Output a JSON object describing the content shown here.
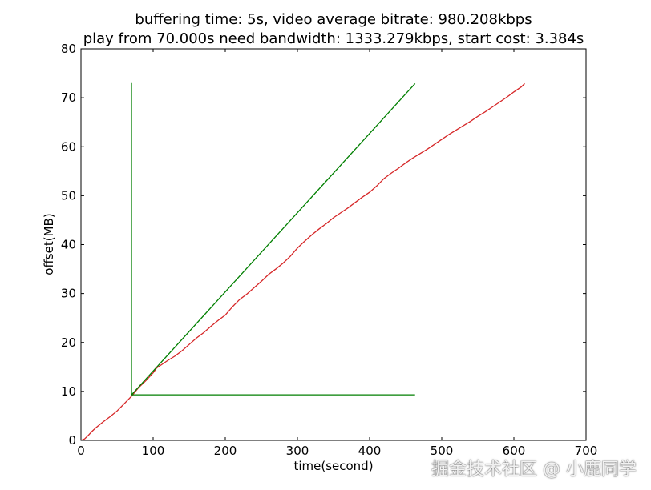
{
  "chart_data": {
    "type": "line",
    "title_lines": [
      "buffering time: 5s, video average bitrate: 980.208kbps",
      "play from 70.000s need bandwidth: 1333.279kbps, start cost: 3.384s"
    ],
    "xlabel": "time(second)",
    "ylabel": "offset(MB)",
    "xlim": [
      0,
      700
    ],
    "ylim": [
      0,
      80
    ],
    "xticks": [
      0,
      100,
      200,
      300,
      400,
      500,
      600,
      700
    ],
    "yticks": [
      0,
      10,
      20,
      30,
      40,
      50,
      60,
      70,
      80
    ],
    "grid": false,
    "series": [
      {
        "color": "#d62728",
        "x": [
          0,
          5,
          10,
          15,
          20,
          30,
          40,
          50,
          60,
          70,
          80,
          90,
          100,
          105,
          110,
          120,
          130,
          140,
          150,
          160,
          170,
          180,
          190,
          200,
          210,
          220,
          230,
          240,
          250,
          260,
          270,
          280,
          290,
          300,
          310,
          320,
          330,
          340,
          350,
          360,
          370,
          380,
          390,
          400,
          410,
          420,
          430,
          440,
          450,
          460,
          470,
          480,
          490,
          500,
          510,
          520,
          530,
          540,
          550,
          560,
          570,
          580,
          590,
          600,
          610,
          615
        ],
        "y": [
          0,
          0.3,
          1.0,
          1.8,
          2.5,
          3.7,
          4.8,
          6.0,
          7.5,
          9.0,
          10.8,
          12.2,
          13.8,
          14.8,
          15.3,
          16.3,
          17.2,
          18.3,
          19.6,
          20.9,
          22.0,
          23.3,
          24.5,
          25.6,
          27.3,
          28.8,
          29.9,
          31.2,
          32.5,
          33.9,
          35.0,
          36.2,
          37.6,
          39.3,
          40.7,
          42.0,
          43.2,
          44.3,
          45.5,
          46.5,
          47.5,
          48.6,
          49.7,
          50.7,
          52.0,
          53.5,
          54.6,
          55.6,
          56.7,
          57.7,
          58.6,
          59.5,
          60.5,
          61.5,
          62.5,
          63.4,
          64.3,
          65.2,
          66.2,
          67.1,
          68.1,
          69.1,
          70.1,
          71.2,
          72.2,
          72.9
        ]
      },
      {
        "color": "#007f00",
        "x": [
          70,
          463
        ],
        "y": [
          9.3,
          72.9
        ]
      },
      {
        "color": "#007f00",
        "x": [
          70,
          70
        ],
        "y": [
          9.3,
          73.0
        ]
      },
      {
        "color": "#007f00",
        "x": [
          70,
          463
        ],
        "y": [
          9.3,
          9.3
        ]
      }
    ]
  },
  "watermark": "掘金技术社区 @ 小鹿同学"
}
